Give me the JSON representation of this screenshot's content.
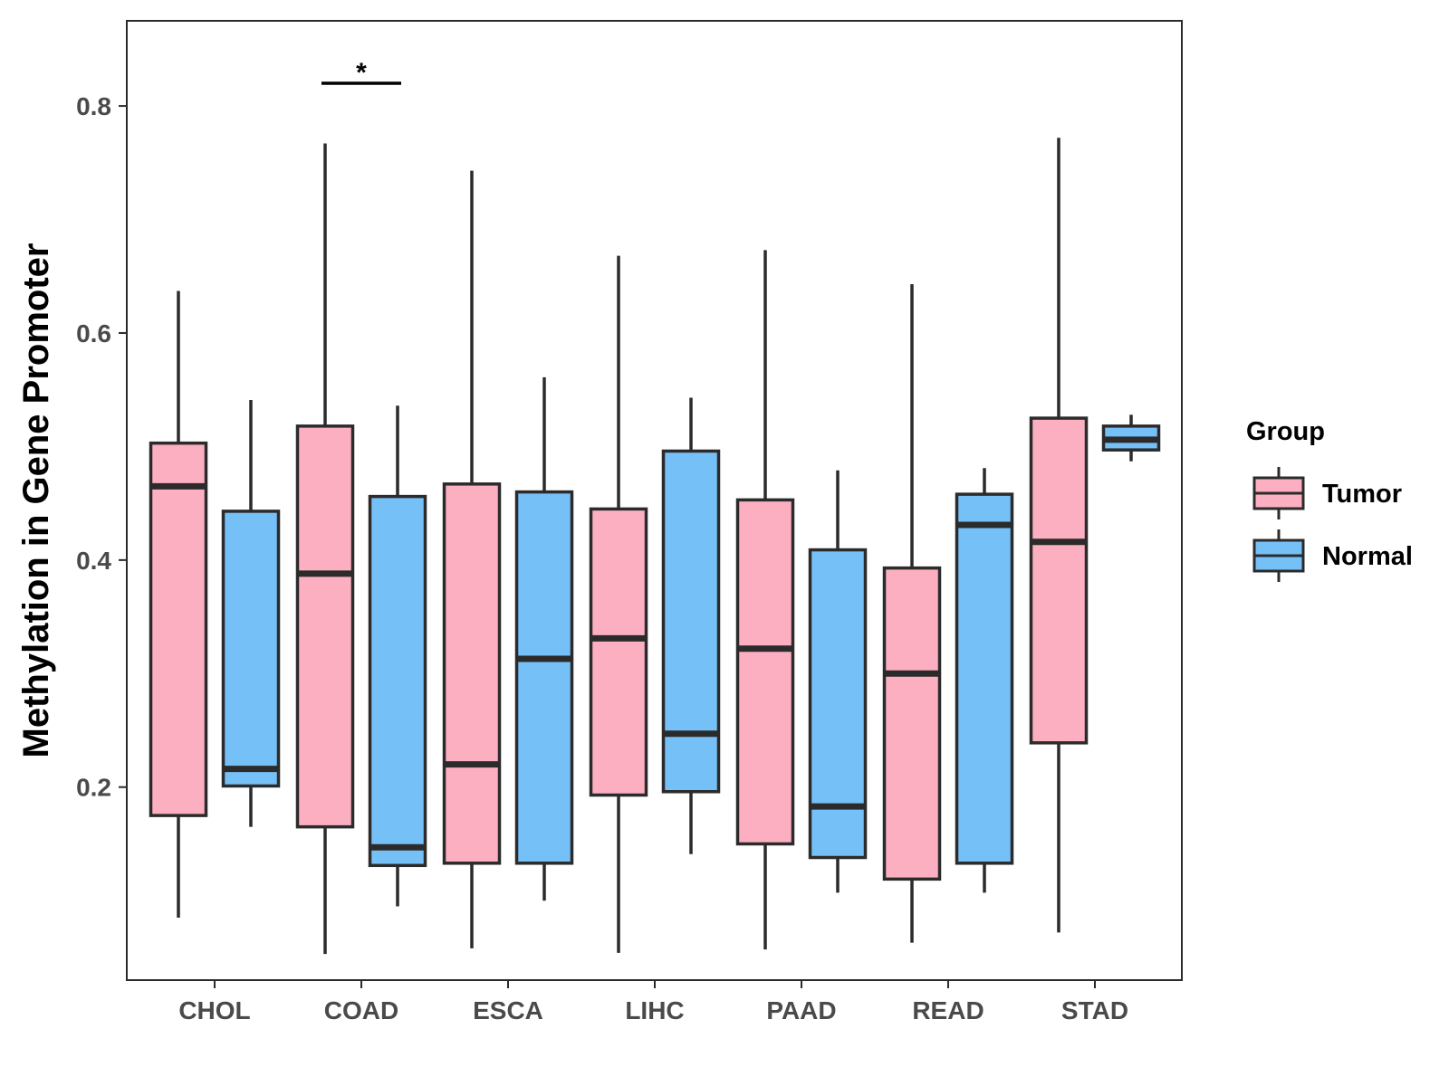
{
  "chart_data": {
    "type": "boxplot",
    "title": "",
    "xlabel": "",
    "ylabel": "Methylation in Gene Promoter",
    "ylim": [
      0.03,
      0.875
    ],
    "yticks": [
      0.2,
      0.4,
      0.6,
      0.8
    ],
    "ytick_labels": [
      "0.2",
      "0.4",
      "0.6",
      "0.8"
    ],
    "grid": false,
    "categories": [
      "CHOL",
      "COAD",
      "ESCA",
      "LIHC",
      "PAAD",
      "READ",
      "STAD"
    ],
    "legend": {
      "title": "Group",
      "position": "right",
      "entries": [
        {
          "name": "Tumor",
          "color": "#fcafc1"
        },
        {
          "name": "Normal",
          "color": "#76c0f8"
        }
      ]
    },
    "series": [
      {
        "name": "Tumor",
        "color": "#fcafc1",
        "boxes": [
          {
            "min": 0.085,
            "q1": 0.175,
            "median": 0.465,
            "q3": 0.503,
            "max": 0.637
          },
          {
            "min": 0.053,
            "q1": 0.165,
            "median": 0.388,
            "q3": 0.518,
            "max": 0.767
          },
          {
            "min": 0.058,
            "q1": 0.133,
            "median": 0.22,
            "q3": 0.467,
            "max": 0.743
          },
          {
            "min": 0.054,
            "q1": 0.193,
            "median": 0.331,
            "q3": 0.445,
            "max": 0.668
          },
          {
            "min": 0.057,
            "q1": 0.15,
            "median": 0.322,
            "q3": 0.453,
            "max": 0.673
          },
          {
            "min": 0.063,
            "q1": 0.119,
            "median": 0.3,
            "q3": 0.393,
            "max": 0.643
          },
          {
            "min": 0.072,
            "q1": 0.239,
            "median": 0.416,
            "q3": 0.525,
            "max": 0.772
          }
        ]
      },
      {
        "name": "Normal",
        "color": "#76c0f8",
        "boxes": [
          {
            "min": 0.165,
            "q1": 0.201,
            "median": 0.216,
            "q3": 0.443,
            "max": 0.541
          },
          {
            "min": 0.095,
            "q1": 0.131,
            "median": 0.147,
            "q3": 0.456,
            "max": 0.536
          },
          {
            "min": 0.1,
            "q1": 0.133,
            "median": 0.313,
            "q3": 0.46,
            "max": 0.561
          },
          {
            "min": 0.141,
            "q1": 0.196,
            "median": 0.247,
            "q3": 0.496,
            "max": 0.543
          },
          {
            "min": 0.107,
            "q1": 0.138,
            "median": 0.183,
            "q3": 0.409,
            "max": 0.479
          },
          {
            "min": 0.107,
            "q1": 0.133,
            "median": 0.431,
            "q3": 0.458,
            "max": 0.481
          },
          {
            "min": 0.487,
            "q1": 0.497,
            "median": 0.506,
            "q3": 0.518,
            "max": 0.528
          }
        ]
      }
    ],
    "annotations": [
      {
        "type": "significance",
        "category": "COAD",
        "label": "*",
        "y": 0.82
      }
    ]
  }
}
